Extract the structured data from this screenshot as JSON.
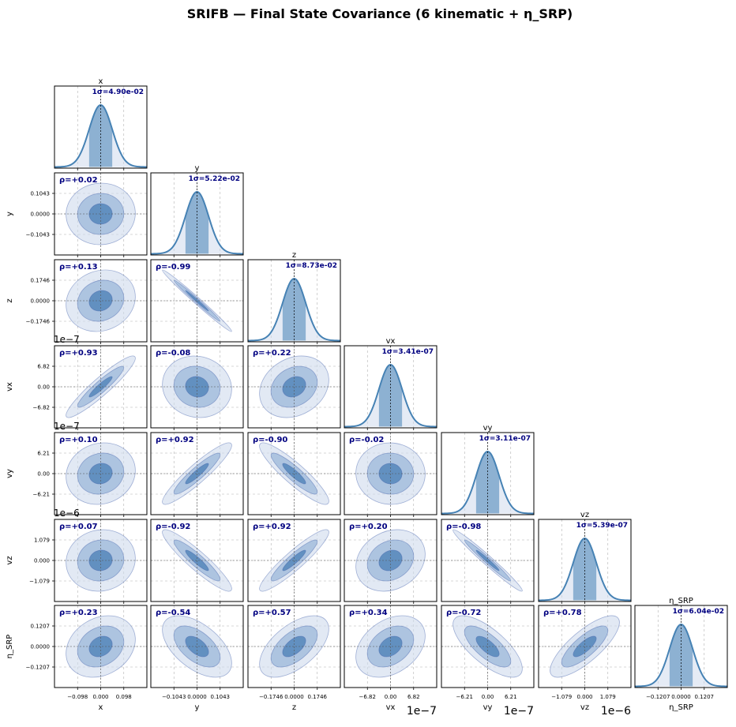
{
  "title": "SRIFB — Final State Covariance (6 kinematic + η_SRP)",
  "colors": {
    "fill_1sigma": "#4a7fb6",
    "fill_2sigma": "#8aacd2",
    "fill_3sigma": "#cfdbec",
    "curve": "#4682b4",
    "annotation": "#000080",
    "grid": "#b0b0b0"
  },
  "chart_data": {
    "type": "corner",
    "grid": true,
    "variables": [
      {
        "name": "x",
        "sigma": 0.049,
        "sigma_label": "1σ=4.90e-02",
        "ticks": [
          "−0.098",
          "0.000",
          "0.098"
        ],
        "exponent": ""
      },
      {
        "name": "y",
        "sigma": 0.0522,
        "sigma_label": "1σ=5.22e-02",
        "ticks": [
          "−0.1043",
          "0.0000",
          "0.1043"
        ],
        "exponent": ""
      },
      {
        "name": "z",
        "sigma": 0.0873,
        "sigma_label": "1σ=8.73e-02",
        "ticks": [
          "−0.1746",
          "0.0000",
          "0.1746"
        ],
        "exponent": ""
      },
      {
        "name": "vx",
        "sigma": 3.41e-07,
        "sigma_label": "1σ=3.41e-07",
        "ticks": [
          "−6.82",
          "0.00",
          "6.82"
        ],
        "exponent": "1e−7"
      },
      {
        "name": "vy",
        "sigma": 3.11e-07,
        "sigma_label": "1σ=3.11e-07",
        "ticks": [
          "−6.21",
          "0.00",
          "6.21"
        ],
        "exponent": "1e−7"
      },
      {
        "name": "vz",
        "sigma": 5.39e-07,
        "sigma_label": "1σ=5.39e-07",
        "ticks": [
          "−1.079",
          "0.000",
          "1.079"
        ],
        "exponent": "1e−6"
      },
      {
        "name": "η_SRP",
        "sigma": 0.0604,
        "sigma_label": "1σ=6.04e-02",
        "ticks": [
          "−0.1207",
          "0.0000",
          "0.1207"
        ],
        "exponent": ""
      }
    ],
    "axis_labels": [
      "x",
      "y",
      "z",
      "vx",
      "vy",
      "vz",
      "η_SRP"
    ],
    "correlations": [
      {
        "row": 1,
        "col": 0,
        "rho": 0.02,
        "label": "ρ=+0.02"
      },
      {
        "row": 2,
        "col": 0,
        "rho": 0.13,
        "label": "ρ=+0.13"
      },
      {
        "row": 2,
        "col": 1,
        "rho": -0.99,
        "label": "ρ=-0.99"
      },
      {
        "row": 3,
        "col": 0,
        "rho": 0.93,
        "label": "ρ=+0.93"
      },
      {
        "row": 3,
        "col": 1,
        "rho": -0.08,
        "label": "ρ=-0.08"
      },
      {
        "row": 3,
        "col": 2,
        "rho": 0.22,
        "label": "ρ=+0.22"
      },
      {
        "row": 4,
        "col": 0,
        "rho": 0.1,
        "label": "ρ=+0.10"
      },
      {
        "row": 4,
        "col": 1,
        "rho": 0.92,
        "label": "ρ=+0.92"
      },
      {
        "row": 4,
        "col": 2,
        "rho": -0.9,
        "label": "ρ=-0.90"
      },
      {
        "row": 4,
        "col": 3,
        "rho": -0.02,
        "label": "ρ=-0.02"
      },
      {
        "row": 5,
        "col": 0,
        "rho": 0.07,
        "label": "ρ=+0.07"
      },
      {
        "row": 5,
        "col": 1,
        "rho": -0.92,
        "label": "ρ=-0.92"
      },
      {
        "row": 5,
        "col": 2,
        "rho": 0.92,
        "label": "ρ=+0.92"
      },
      {
        "row": 5,
        "col": 3,
        "rho": 0.2,
        "label": "ρ=+0.20"
      },
      {
        "row": 5,
        "col": 4,
        "rho": -0.98,
        "label": "ρ=-0.98"
      },
      {
        "row": 6,
        "col": 0,
        "rho": 0.23,
        "label": "ρ=+0.23"
      },
      {
        "row": 6,
        "col": 1,
        "rho": -0.54,
        "label": "ρ=-0.54"
      },
      {
        "row": 6,
        "col": 2,
        "rho": 0.57,
        "label": "ρ=+0.57"
      },
      {
        "row": 6,
        "col": 3,
        "rho": 0.34,
        "label": "ρ=+0.34"
      },
      {
        "row": 6,
        "col": 4,
        "rho": -0.72,
        "label": "ρ=-0.72"
      },
      {
        "row": 6,
        "col": 5,
        "rho": 0.78,
        "label": "ρ=+0.78"
      }
    ]
  }
}
